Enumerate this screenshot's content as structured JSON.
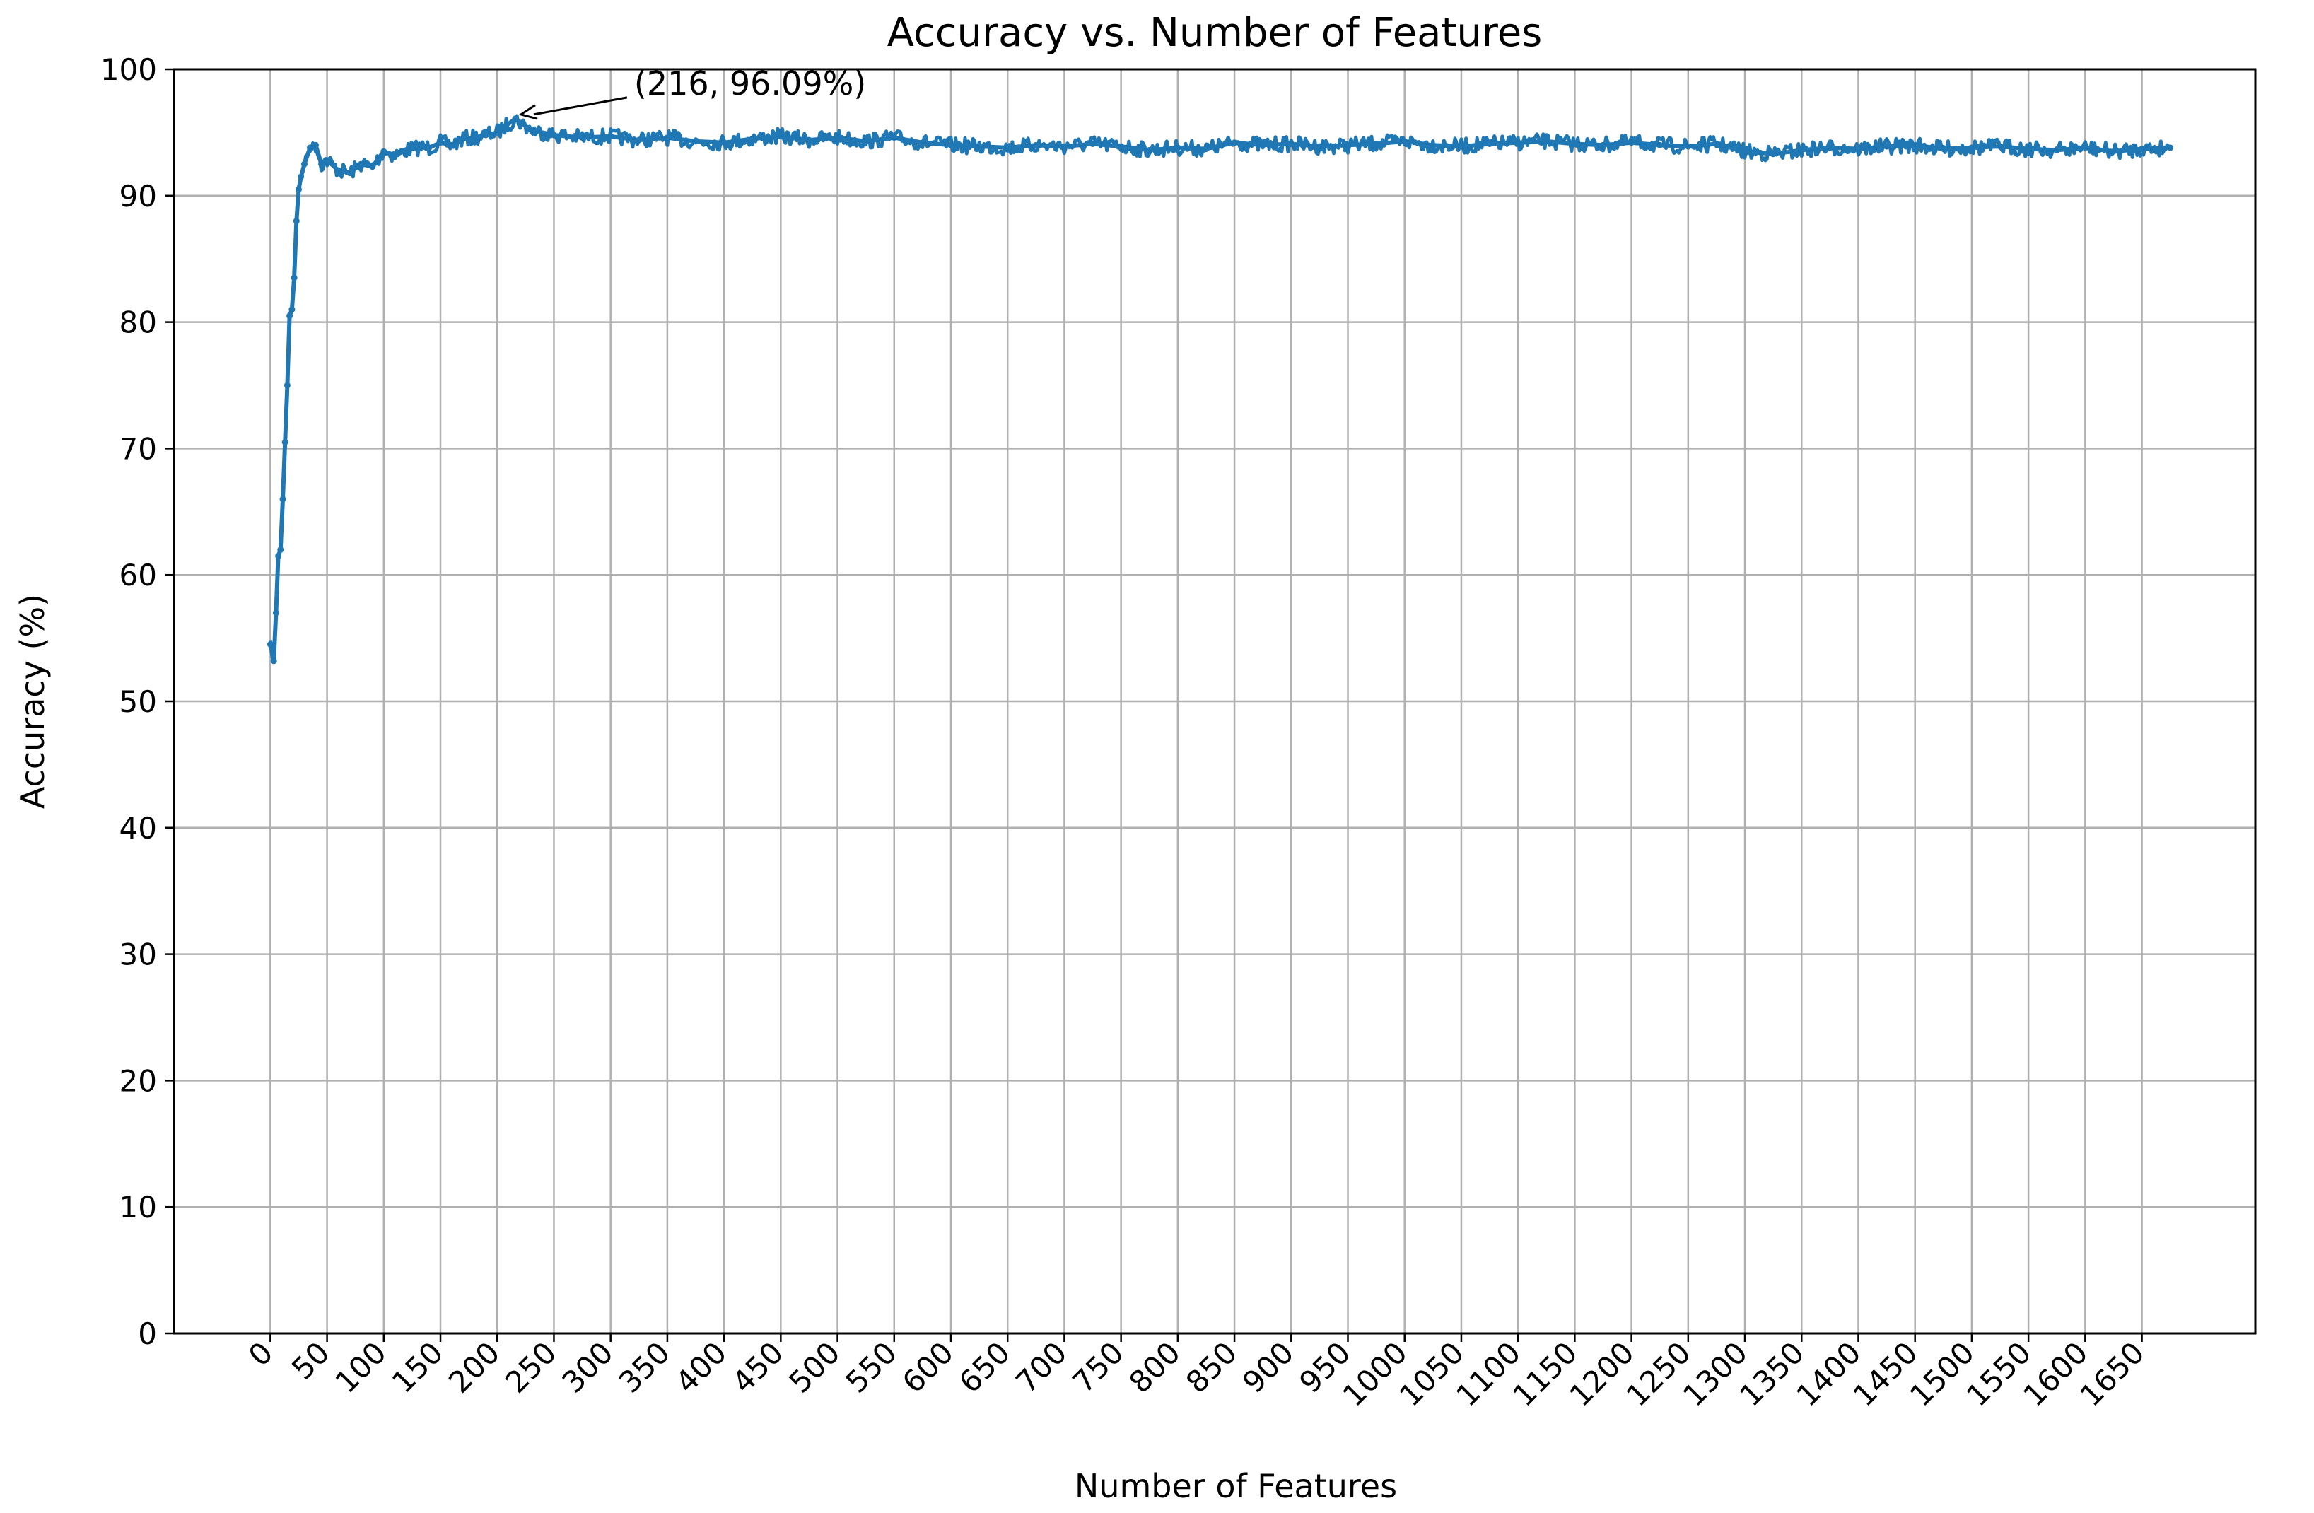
{
  "chart_data": {
    "type": "line",
    "title": "Accuracy vs. Number of Features",
    "xlabel": "Number of Features",
    "ylabel": "Accuracy (%)",
    "xlim": [
      -85,
      1750
    ],
    "ylim": [
      0,
      100
    ],
    "grid": true,
    "xticks": [
      0,
      50,
      100,
      150,
      200,
      250,
      300,
      350,
      400,
      450,
      500,
      550,
      600,
      650,
      700,
      750,
      800,
      850,
      900,
      950,
      1000,
      1050,
      1100,
      1150,
      1200,
      1250,
      1300,
      1350,
      1400,
      1450,
      1500,
      1550,
      1600,
      1650
    ],
    "yticks": [
      0,
      10,
      20,
      30,
      40,
      50,
      60,
      70,
      80,
      90,
      100
    ],
    "series": [
      {
        "color": "#1f77b4",
        "marker": "dot",
        "x": [
          0,
          3,
          5,
          7,
          9,
          11,
          13,
          15,
          17,
          19,
          21,
          23,
          25,
          27,
          30,
          35,
          40,
          45,
          50,
          60,
          70,
          80,
          90,
          100,
          110,
          120,
          130,
          140,
          150,
          160,
          170,
          180,
          190,
          200,
          216,
          230,
          250,
          275,
          300,
          325,
          350,
          375,
          400,
          425,
          450,
          475,
          500,
          525,
          550,
          575,
          600,
          625,
          650,
          675,
          700,
          725,
          750,
          775,
          800,
          825,
          850,
          875,
          900,
          925,
          950,
          975,
          1000,
          1025,
          1050,
          1075,
          1100,
          1125,
          1150,
          1175,
          1200,
          1225,
          1250,
          1275,
          1300,
          1325,
          1350,
          1375,
          1400,
          1425,
          1450,
          1475,
          1500,
          1525,
          1550,
          1575,
          1600,
          1625,
          1650,
          1675
        ],
        "y": [
          54.5,
          53.2,
          57.0,
          61.5,
          62.0,
          66.0,
          70.5,
          75.0,
          80.5,
          81.0,
          83.5,
          88.0,
          90.5,
          91.5,
          92.5,
          93.8,
          94.0,
          92.5,
          92.8,
          92.0,
          91.8,
          92.5,
          92.3,
          93.5,
          93.2,
          93.6,
          93.8,
          93.8,
          94.2,
          94.0,
          94.5,
          94.6,
          94.8,
          95.0,
          96.09,
          95.2,
          94.8,
          94.6,
          94.7,
          94.4,
          94.6,
          94.3,
          94.2,
          94.5,
          94.7,
          94.4,
          94.6,
          94.3,
          94.6,
          94.2,
          94.0,
          93.9,
          93.8,
          94.0,
          93.9,
          94.1,
          93.9,
          93.6,
          93.8,
          93.7,
          94.2,
          94.0,
          94.1,
          93.9,
          94.0,
          94.1,
          94.3,
          94.0,
          93.9,
          94.1,
          94.2,
          94.3,
          94.1,
          94.0,
          94.2,
          94.0,
          93.9,
          94.1,
          93.5,
          93.3,
          93.6,
          93.8,
          93.7,
          93.9,
          94.0,
          93.7,
          93.8,
          93.9,
          93.7,
          93.6,
          93.8,
          93.5,
          93.7,
          93.8
        ]
      }
    ],
    "annotation": {
      "text": "(216, 96.09%)",
      "x": 216,
      "y": 96.09
    }
  }
}
